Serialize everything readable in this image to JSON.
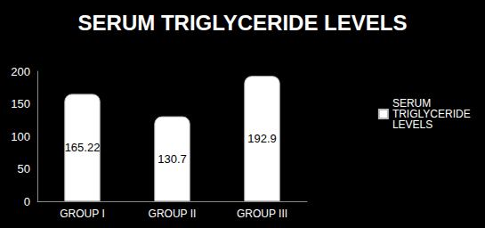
{
  "chart_data": {
    "type": "bar",
    "title": "SERUM TRIGLYCERIDE LEVELS",
    "categories": [
      "GROUP I",
      "GROUP II",
      "GROUP III"
    ],
    "series": [
      {
        "name": "SERUM TRIGLYCERIDE LEVELS",
        "color": "#ffffff",
        "values": [
          165.22,
          130.7,
          192.9
        ]
      }
    ],
    "ylim": [
      0,
      200
    ],
    "yticks": [
      0,
      50,
      100,
      150,
      200
    ],
    "grid": false,
    "legend": "right",
    "data_labels": true
  }
}
